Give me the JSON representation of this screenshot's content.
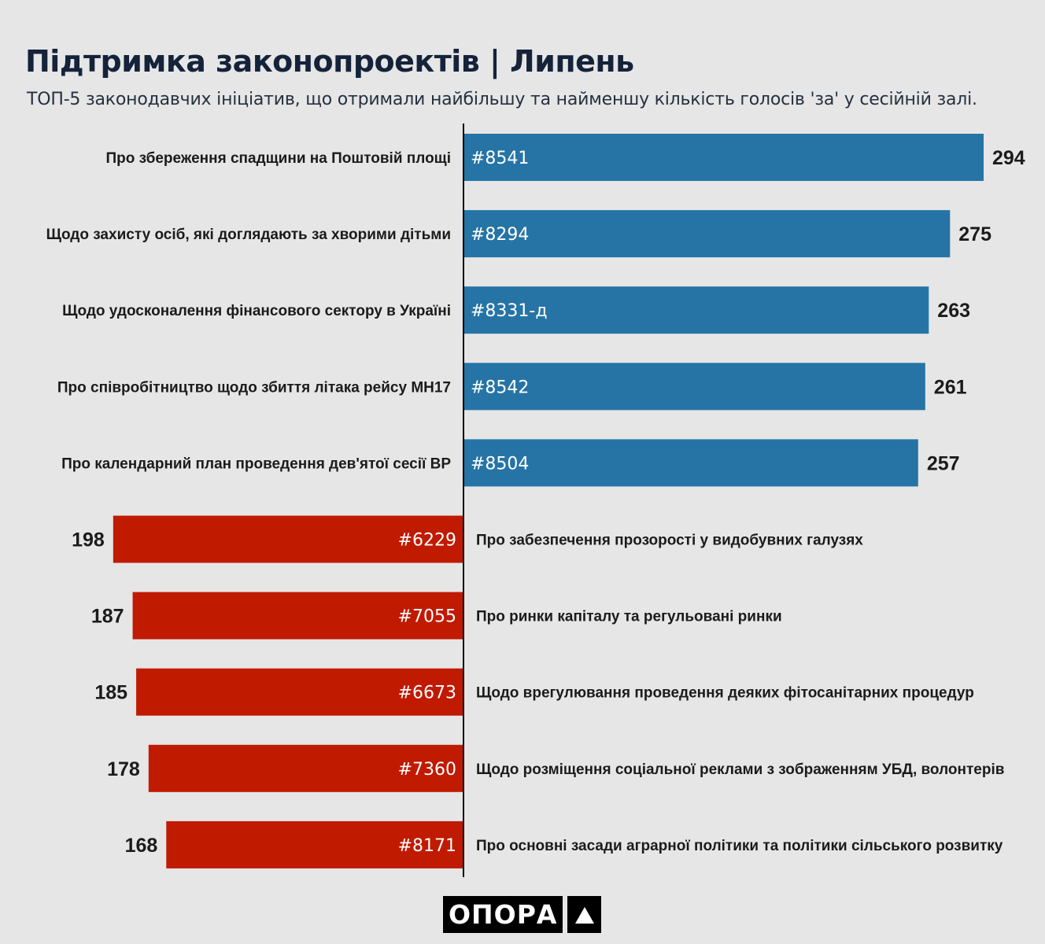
{
  "title": "Підтримка законопроектів | Липень",
  "subtitle": "ТОП-5 законодавчих ініціатив, що отримали найбільшу та найменшу кількість голосів 'за' у сесійній залі.",
  "logo": {
    "text": "ОПОРА",
    "icon": "triangle-icon"
  },
  "colors": {
    "top": "#2674a6",
    "bottom": "#c01a00",
    "axis": "#000000"
  },
  "chart_data": {
    "type": "bar",
    "groups": [
      {
        "name": "top",
        "bars": [
          {
            "id": "#8541",
            "label": "Про збереження спадщини на Поштовій площі",
            "value": 294
          },
          {
            "id": "#8294",
            "label": "Щодо захисту осіб, які доглядають за хворими дітьми",
            "value": 275
          },
          {
            "id": "#8331-д",
            "label": "Щодо удосконалення фінансового сектору в Україні",
            "value": 263
          },
          {
            "id": "#8542",
            "label": "Про співробітництво щодо збиття літака рейсу MH17",
            "value": 261
          },
          {
            "id": "#8504",
            "label": "Про календарний план проведення дев'ятої сесії ВР",
            "value": 257
          }
        ]
      },
      {
        "name": "bottom",
        "bars": [
          {
            "id": "#6229",
            "label": "Про забезпечення прозорості у видобувних галузях",
            "value": 198
          },
          {
            "id": "#7055",
            "label": "Про ринки капіталу та регульовані ринки",
            "value": 187
          },
          {
            "id": "#6673",
            "label": "Щодо врегулювання проведення деяких фітосанітарних процедур",
            "value": 185
          },
          {
            "id": "#7360",
            "label": "Щодо розміщення соціальної реклами з зображенням УБД, волонтерів",
            "value": 178
          },
          {
            "id": "#8171",
            "label": "Про основні засади аграрної політики та політики сільського розвитку",
            "value": 168
          }
        ]
      }
    ]
  }
}
